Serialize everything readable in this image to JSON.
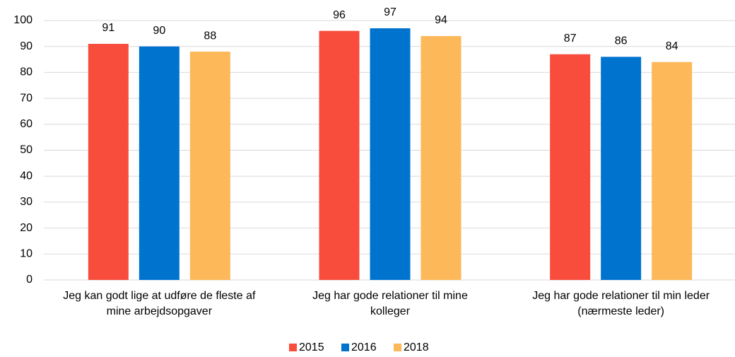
{
  "chart_data": {
    "type": "bar",
    "categories": [
      "Jeg kan godt lige at udføre de fleste af mine arbejdsopgaver",
      "Jeg har gode relationer til mine kolleger",
      "Jeg har gode relationer til min leder (nærmeste leder)"
    ],
    "series": [
      {
        "name": "2015",
        "color": "#f84c3c",
        "values": [
          91,
          96,
          87
        ]
      },
      {
        "name": "2016",
        "color": "#0073cf",
        "values": [
          90,
          97,
          86
        ]
      },
      {
        "name": "2018",
        "color": "#fdb85a",
        "values": [
          88,
          94,
          84
        ]
      }
    ],
    "ylim": [
      0,
      100
    ],
    "yticks": [
      0,
      10,
      20,
      30,
      40,
      50,
      60,
      70,
      80,
      90,
      100
    ],
    "grid": true,
    "legend": "bottom"
  }
}
